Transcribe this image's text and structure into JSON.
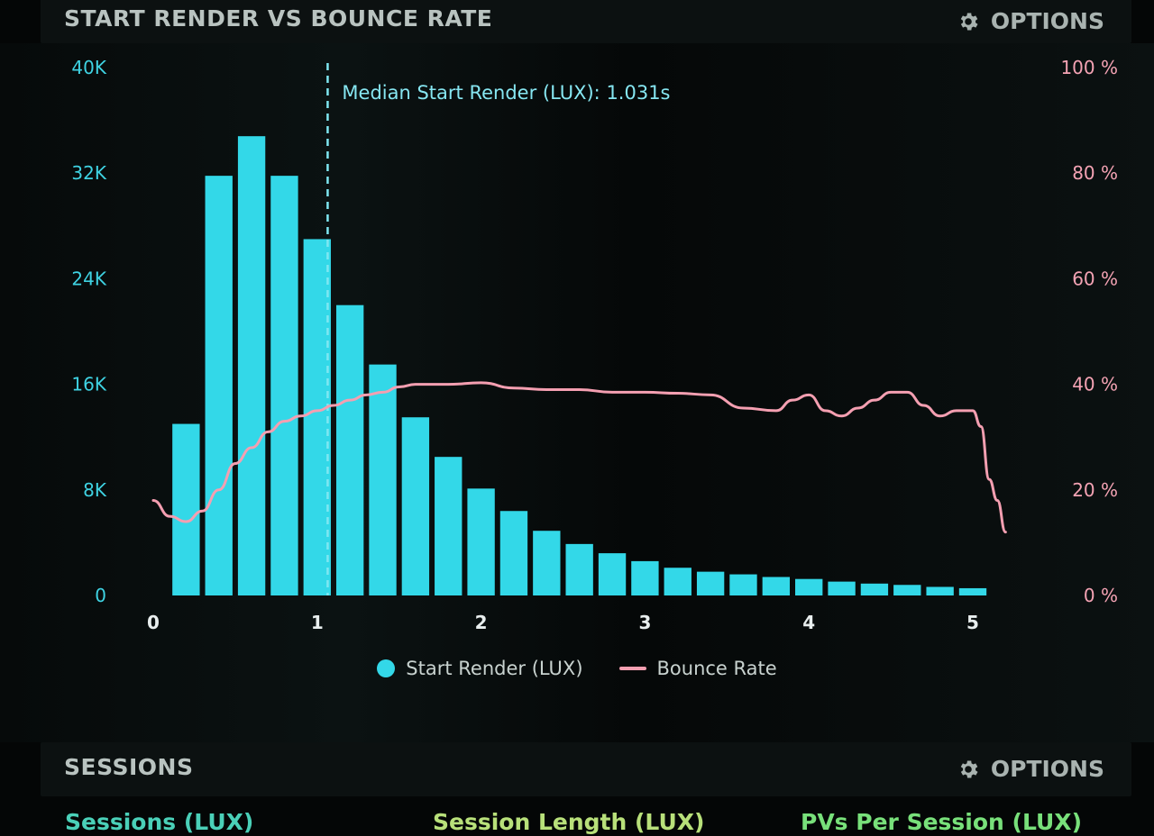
{
  "header": {
    "title": "START RENDER VS BOUNCE RATE",
    "options_label": "OPTIONS"
  },
  "sessions_header": {
    "title": "SESSIONS",
    "options_label": "OPTIONS"
  },
  "metrics": {
    "sessions": "Sessions (LUX)",
    "session_length": "Session Length (LUX)",
    "pvs_per_session": "PVs Per Session (LUX)"
  },
  "colors": {
    "bars": "#33d8e8",
    "bounce_line": "#f49fb1",
    "left_axis": "#3fd3e3",
    "right_axis": "#f4a3b4",
    "x_axis": "#e8eeee"
  },
  "chart_data": {
    "type": "bar",
    "title": "START RENDER VS BOUNCE RATE",
    "x_ticks": [
      0,
      1,
      2,
      3,
      4,
      5
    ],
    "xlim": [
      0,
      5.2
    ],
    "y_left": {
      "ticks": [
        "0",
        "8K",
        "16K",
        "24K",
        "32K",
        "40K"
      ],
      "ylim": [
        0,
        40000
      ]
    },
    "y_right": {
      "ticks": [
        "0 %",
        "20 %",
        "40 %",
        "60 %",
        "80 %",
        "100 %"
      ],
      "ylim": [
        0,
        100
      ]
    },
    "annotation": {
      "label": "Median Start Render (LUX): 1.031s",
      "x": 1.031
    },
    "bar_width": 0.2,
    "series": [
      {
        "name": "Start Render (LUX)",
        "type": "bar",
        "x": [
          0.2,
          0.4,
          0.6,
          0.8,
          1.0,
          1.2,
          1.4,
          1.6,
          1.8,
          2.0,
          2.2,
          2.4,
          2.6,
          2.8,
          3.0,
          3.2,
          3.4,
          3.6,
          3.8,
          4.0,
          4.2,
          4.4,
          4.6,
          4.8,
          5.0
        ],
        "values": [
          13000,
          31800,
          34800,
          31800,
          27000,
          22000,
          17500,
          13500,
          10500,
          8100,
          6400,
          4900,
          3900,
          3200,
          2600,
          2100,
          1800,
          1600,
          1400,
          1250,
          1050,
          900,
          800,
          650,
          550
        ]
      },
      {
        "name": "Bounce Rate",
        "type": "line",
        "x": [
          0.0,
          0.1,
          0.2,
          0.3,
          0.4,
          0.5,
          0.6,
          0.7,
          0.8,
          0.9,
          1.0,
          1.1,
          1.2,
          1.3,
          1.4,
          1.5,
          1.6,
          1.8,
          2.0,
          2.2,
          2.4,
          2.6,
          2.8,
          3.0,
          3.2,
          3.4,
          3.6,
          3.8,
          3.9,
          4.0,
          4.1,
          4.2,
          4.3,
          4.4,
          4.5,
          4.6,
          4.7,
          4.8,
          4.9,
          5.0,
          5.05,
          5.1,
          5.15,
          5.2
        ],
        "values": [
          18,
          15,
          14,
          16,
          20,
          25,
          28,
          31,
          33,
          34,
          35,
          36,
          37,
          38,
          38.5,
          39.5,
          40,
          40,
          40.3,
          39.3,
          39,
          39,
          38.5,
          38.5,
          38.3,
          38,
          35.5,
          35,
          37,
          38,
          35,
          34,
          35.5,
          37,
          38.5,
          38.5,
          36,
          34,
          35,
          35,
          32,
          22,
          18,
          12
        ]
      }
    ],
    "legend": {
      "position": "bottom-center",
      "entries": [
        "Start Render (LUX)",
        "Bounce Rate"
      ]
    },
    "grid": false
  }
}
